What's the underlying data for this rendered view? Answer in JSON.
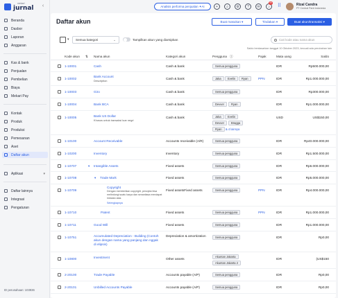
{
  "app": {
    "logo_small": "mekari",
    "logo_main": "jurnal"
  },
  "sidebar": {
    "items": [
      {
        "label": "Beranda"
      },
      {
        "label": "Dasbor"
      },
      {
        "label": "Laporan"
      },
      {
        "label": "Anggaran"
      },
      {
        "label": "Kas & bank"
      },
      {
        "label": "Penjualan"
      },
      {
        "label": "Pembelian"
      },
      {
        "label": "Biaya"
      },
      {
        "label": "Mekari Pay"
      },
      {
        "label": "Kontak"
      },
      {
        "label": "Produk"
      },
      {
        "label": "Produksi"
      },
      {
        "label": "Pemesanan"
      },
      {
        "label": "Aset"
      },
      {
        "label": "Daftar akun"
      },
      {
        "label": "Aplikasi"
      },
      {
        "label": "Daftar lainnya"
      },
      {
        "label": "Integrasi"
      },
      {
        "label": "Pengaturan"
      }
    ],
    "company_id": "ID perusahaan: 103936"
  },
  "topbar": {
    "performance_button": "Analisis performa penjualan",
    "performance_tag": "AI",
    "notification_count": "99",
    "user_name": "Rizal Candra",
    "user_company": "PT Central Park Indonesia"
  },
  "page": {
    "title": "Daftar akun",
    "import_button": "Buat masukan",
    "actions_button": "Tindakan",
    "create_button": "Buat akun/transaksi",
    "category_select": "Semua kategori",
    "toggle_label": "Tampilkan akun yang diarsipkan",
    "search_placeholder": "Cari kode atau nama akun",
    "balance_note": "Saldo berdasarkan tanggal 10 Oktober 2023, kecuali ada perubahan lain"
  },
  "table": {
    "headers": {
      "code": "Kode akun",
      "name": "Nama akun",
      "category": "Kategori akun",
      "users": "Pengguna",
      "tax": "Pajak",
      "currency": "Mata uang",
      "balance": "Saldo"
    },
    "rows": [
      {
        "code": "1-10001",
        "name": "Cash",
        "category": "Cash & bank",
        "users": [
          "Semua pengguna"
        ],
        "tax": "",
        "currency": "IDR",
        "balance": "Rp500.000,00"
      },
      {
        "code": "1-10002",
        "name": "Bank Account",
        "desc": "Description",
        "category": "Cash & bank",
        "users": [
          "Jaka",
          "Evelin",
          "Ryan"
        ],
        "tax": "PPN",
        "currency": "IDR",
        "balance": "Rp1.000.000,00"
      },
      {
        "code": "1-10003",
        "name": "Giro",
        "category": "Cash & bank",
        "users": [
          "Semua pengguna"
        ],
        "tax": "",
        "currency": "IDR",
        "balance": "Rp300.000,00"
      },
      {
        "code": "1-10004",
        "name": "Bank BCA",
        "category": "Cash & bank",
        "users": [
          "Devver",
          "Ryan"
        ],
        "tax": "",
        "currency": "IDR",
        "balance": "Rp1.000.000,00"
      },
      {
        "code": "1-10005",
        "name": "Bank US Dollar",
        "desc": "Khusus untuk transaksi luar negri",
        "category": "Cash & bank",
        "users": [
          "Jaka",
          "Evelin",
          "Devver",
          "Bragga",
          "Ryan"
        ],
        "users_more": "& 4 lainnya",
        "tax": "",
        "currency": "USD",
        "balance": "US$150,00"
      },
      {
        "code": "1-10100",
        "name": "Account Receivable",
        "category": "Accounts receivable (A/R)",
        "users": [
          "Semua pengguna"
        ],
        "tax": "",
        "currency": "IDR",
        "balance": "Rp40.000.000,00"
      },
      {
        "code": "1-10200",
        "name": "Inventory",
        "category": "Inventory",
        "users": [
          "Semua pengguna"
        ],
        "tax": "",
        "currency": "IDR",
        "balance": "Rp1.500.000,00"
      },
      {
        "code": "1-10707",
        "name": "Intangible Assets",
        "category": "Fixed assets",
        "users": [
          "Semua pengguna"
        ],
        "tax": "",
        "currency": "IDR",
        "balance": "Rp6.000.000,00"
      },
      {
        "code": "1-10708",
        "name": "Trade Mark",
        "category": "Fixed assets",
        "users": [
          "Semua pengguna"
        ],
        "tax": "",
        "currency": "IDR",
        "balance": "Rp5.000.000,00"
      },
      {
        "code": "1-10709",
        "name": "Copyright",
        "desc": "Dengan memberikan copyright, pencipta bisa melindungi suatu karya dan senantiasa mendapat imbalan atas",
        "desc_link": "Selengkapnya",
        "category": "Fixed assetsFixed assets",
        "users": [
          "Semua pengguna"
        ],
        "tax": "PPN",
        "currency": "IDR",
        "balance": "Rp4.000.000,00"
      },
      {
        "code": "1-10710",
        "name": "Patent",
        "category": "Fixed assets",
        "users": [
          "Semua pengguna"
        ],
        "tax": "PPN",
        "currency": "IDR",
        "balance": "Rp1.000.000,00"
      },
      {
        "code": "1-10711",
        "name": "Good Will",
        "category": "Fixed assets",
        "users": [
          "Semua pengguna"
        ],
        "tax": "",
        "currency": "IDR",
        "balance": "Rp1.000.000,00"
      },
      {
        "code": "1-10751",
        "name": "Accumulated Depreciation - Building (Contoh akun dengan nama yang panjang dan nggak di elipsis)",
        "category": "Depreciation & amortization",
        "users": [
          "Semua pengguna"
        ],
        "tax": "",
        "currency": "IDR",
        "balance": "Rp0,00"
      },
      {
        "code": "1-10800",
        "name": "Investment",
        "category": "Other assets",
        "users": [
          "Akuntan Jakarta",
          "Akuntan Jakarta 2"
        ],
        "tax": "",
        "currency": "IDR",
        "balance": "(US$150"
      },
      {
        "code": "2-20100",
        "name": "Trade Payable",
        "category": "Accounts payable (A/P)",
        "users": [
          "Semua pengguna"
        ],
        "tax": "",
        "currency": "IDR",
        "balance": "Rp0,00"
      },
      {
        "code": "2-20101",
        "name": "Unbilled Accounts Payable",
        "category": "Accounts payable (A/P)",
        "users": [
          "Semua pengguna"
        ],
        "tax": "",
        "currency": "IDR",
        "balance": "Rp0,00"
      }
    ]
  }
}
